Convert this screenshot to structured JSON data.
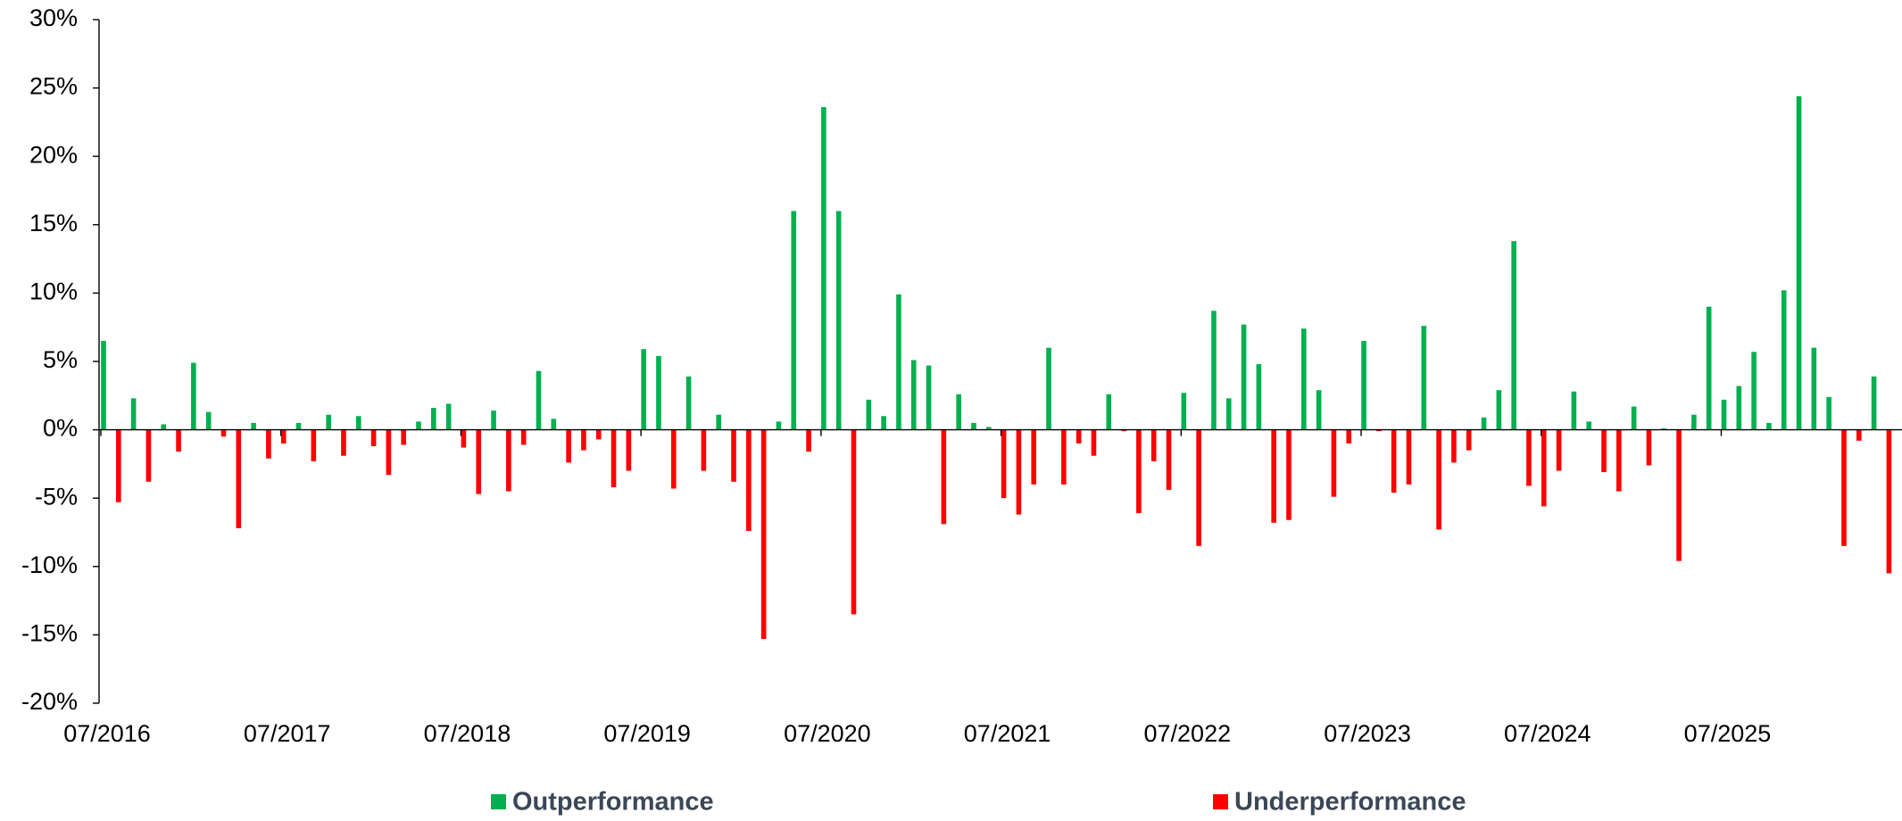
{
  "chart_data": {
    "type": "bar",
    "categories": [
      "07/2016",
      null,
      null,
      null,
      null,
      null,
      null,
      null,
      null,
      null,
      null,
      null,
      "07/2017",
      null,
      null,
      null,
      null,
      null,
      null,
      null,
      null,
      null,
      null,
      null,
      "07/2018",
      null,
      null,
      null,
      null,
      null,
      null,
      null,
      null,
      null,
      null,
      null,
      "07/2019",
      null,
      null,
      null,
      null,
      null,
      null,
      null,
      null,
      null,
      null,
      null,
      "07/2020",
      null,
      null,
      null,
      null,
      null,
      null,
      null,
      null,
      null,
      null,
      null,
      "07/2021",
      null,
      null,
      null,
      null,
      null,
      null,
      null,
      null,
      null,
      null,
      null,
      "07/2022",
      null,
      null,
      null,
      null,
      null,
      null,
      null,
      null,
      null,
      null,
      null,
      "07/2023",
      null,
      null,
      null,
      null,
      null,
      null,
      null,
      null,
      null,
      null,
      null,
      "07/2024",
      null,
      null,
      null,
      null,
      null,
      null,
      null,
      null,
      null,
      null,
      null,
      "07/2025",
      null,
      null,
      null,
      null,
      null,
      null,
      null,
      null,
      null,
      null,
      null
    ],
    "series": [
      {
        "name": "Outperformance",
        "color": "#00b050",
        "values": [
          6.5,
          null,
          2.3,
          null,
          0.4,
          null,
          4.9,
          1.3,
          null,
          null,
          0.5,
          null,
          null,
          0.5,
          null,
          1.1,
          null,
          1.0,
          null,
          null,
          null,
          0.6,
          1.6,
          1.9,
          null,
          null,
          1.4,
          null,
          null,
          4.3,
          0.8,
          null,
          null,
          null,
          null,
          null,
          5.9,
          5.4,
          null,
          3.9,
          null,
          1.1,
          null,
          null,
          null,
          0.6,
          16.0,
          null,
          23.6,
          16.0,
          null,
          2.2,
          1.0,
          9.9,
          5.1,
          4.7,
          null,
          2.6,
          0.5,
          0.2,
          null,
          null,
          null,
          6.0,
          null,
          null,
          null,
          2.6,
          null,
          null,
          null,
          null,
          2.7,
          null,
          8.7,
          2.3,
          7.7,
          4.8,
          null,
          null,
          7.4,
          2.9,
          null,
          null,
          6.5,
          null,
          null,
          null,
          7.6,
          null,
          null,
          null,
          0.9,
          2.9,
          13.8,
          null,
          null,
          null,
          2.8,
          0.6,
          null,
          null,
          1.7,
          null,
          0.1,
          null,
          1.1,
          9.0,
          2.2,
          3.2,
          5.7,
          0.5,
          10.2,
          24.4,
          6.0,
          2.4,
          null,
          null,
          3.9,
          null
        ]
      },
      {
        "name": "Underperformance",
        "color": "#ff0000",
        "values": [
          null,
          -5.3,
          null,
          -3.8,
          null,
          -1.6,
          null,
          null,
          -0.5,
          -7.2,
          null,
          -2.1,
          -1.0,
          null,
          -2.3,
          null,
          -1.9,
          null,
          -1.2,
          -3.3,
          -1.1,
          null,
          null,
          null,
          -1.3,
          -4.7,
          null,
          -4.5,
          -1.1,
          null,
          null,
          -2.4,
          -1.5,
          -0.7,
          -4.2,
          -3.0,
          null,
          null,
          -4.3,
          null,
          -3.0,
          null,
          -3.8,
          -7.4,
          -15.3,
          null,
          null,
          -1.6,
          null,
          null,
          -13.5,
          null,
          null,
          null,
          null,
          null,
          -6.9,
          null,
          null,
          null,
          -5.0,
          -6.2,
          -4.0,
          null,
          -4.0,
          -1.0,
          -1.9,
          null,
          -0.1,
          -6.1,
          -2.3,
          -4.4,
          null,
          -8.5,
          null,
          null,
          null,
          null,
          -6.8,
          -6.6,
          null,
          null,
          -4.9,
          -1.0,
          null,
          -0.1,
          -4.6,
          -4.0,
          null,
          -7.3,
          -2.4,
          -1.5,
          null,
          null,
          null,
          -4.1,
          -5.6,
          -3.0,
          null,
          null,
          -3.1,
          -4.5,
          null,
          -2.6,
          null,
          -9.6,
          null,
          null,
          null,
          null,
          null,
          null,
          null,
          null,
          null,
          null,
          -8.5,
          -0.8,
          null,
          -10.5
        ]
      }
    ],
    "ylim": [
      -20,
      30
    ],
    "yticks": [
      {
        "value": -20,
        "label": "-20%"
      },
      {
        "value": -15,
        "label": "-15%"
      },
      {
        "value": -10,
        "label": "-10%"
      },
      {
        "value": -5,
        "label": "-5%"
      },
      {
        "value": 0,
        "label": "0%"
      },
      {
        "value": 5,
        "label": "5%"
      },
      {
        "value": 10,
        "label": "10%"
      },
      {
        "value": 15,
        "label": "15%"
      },
      {
        "value": 20,
        "label": "20%"
      },
      {
        "value": 25,
        "label": "25%"
      },
      {
        "value": 30,
        "label": "30%"
      }
    ],
    "legend": "bottom"
  }
}
